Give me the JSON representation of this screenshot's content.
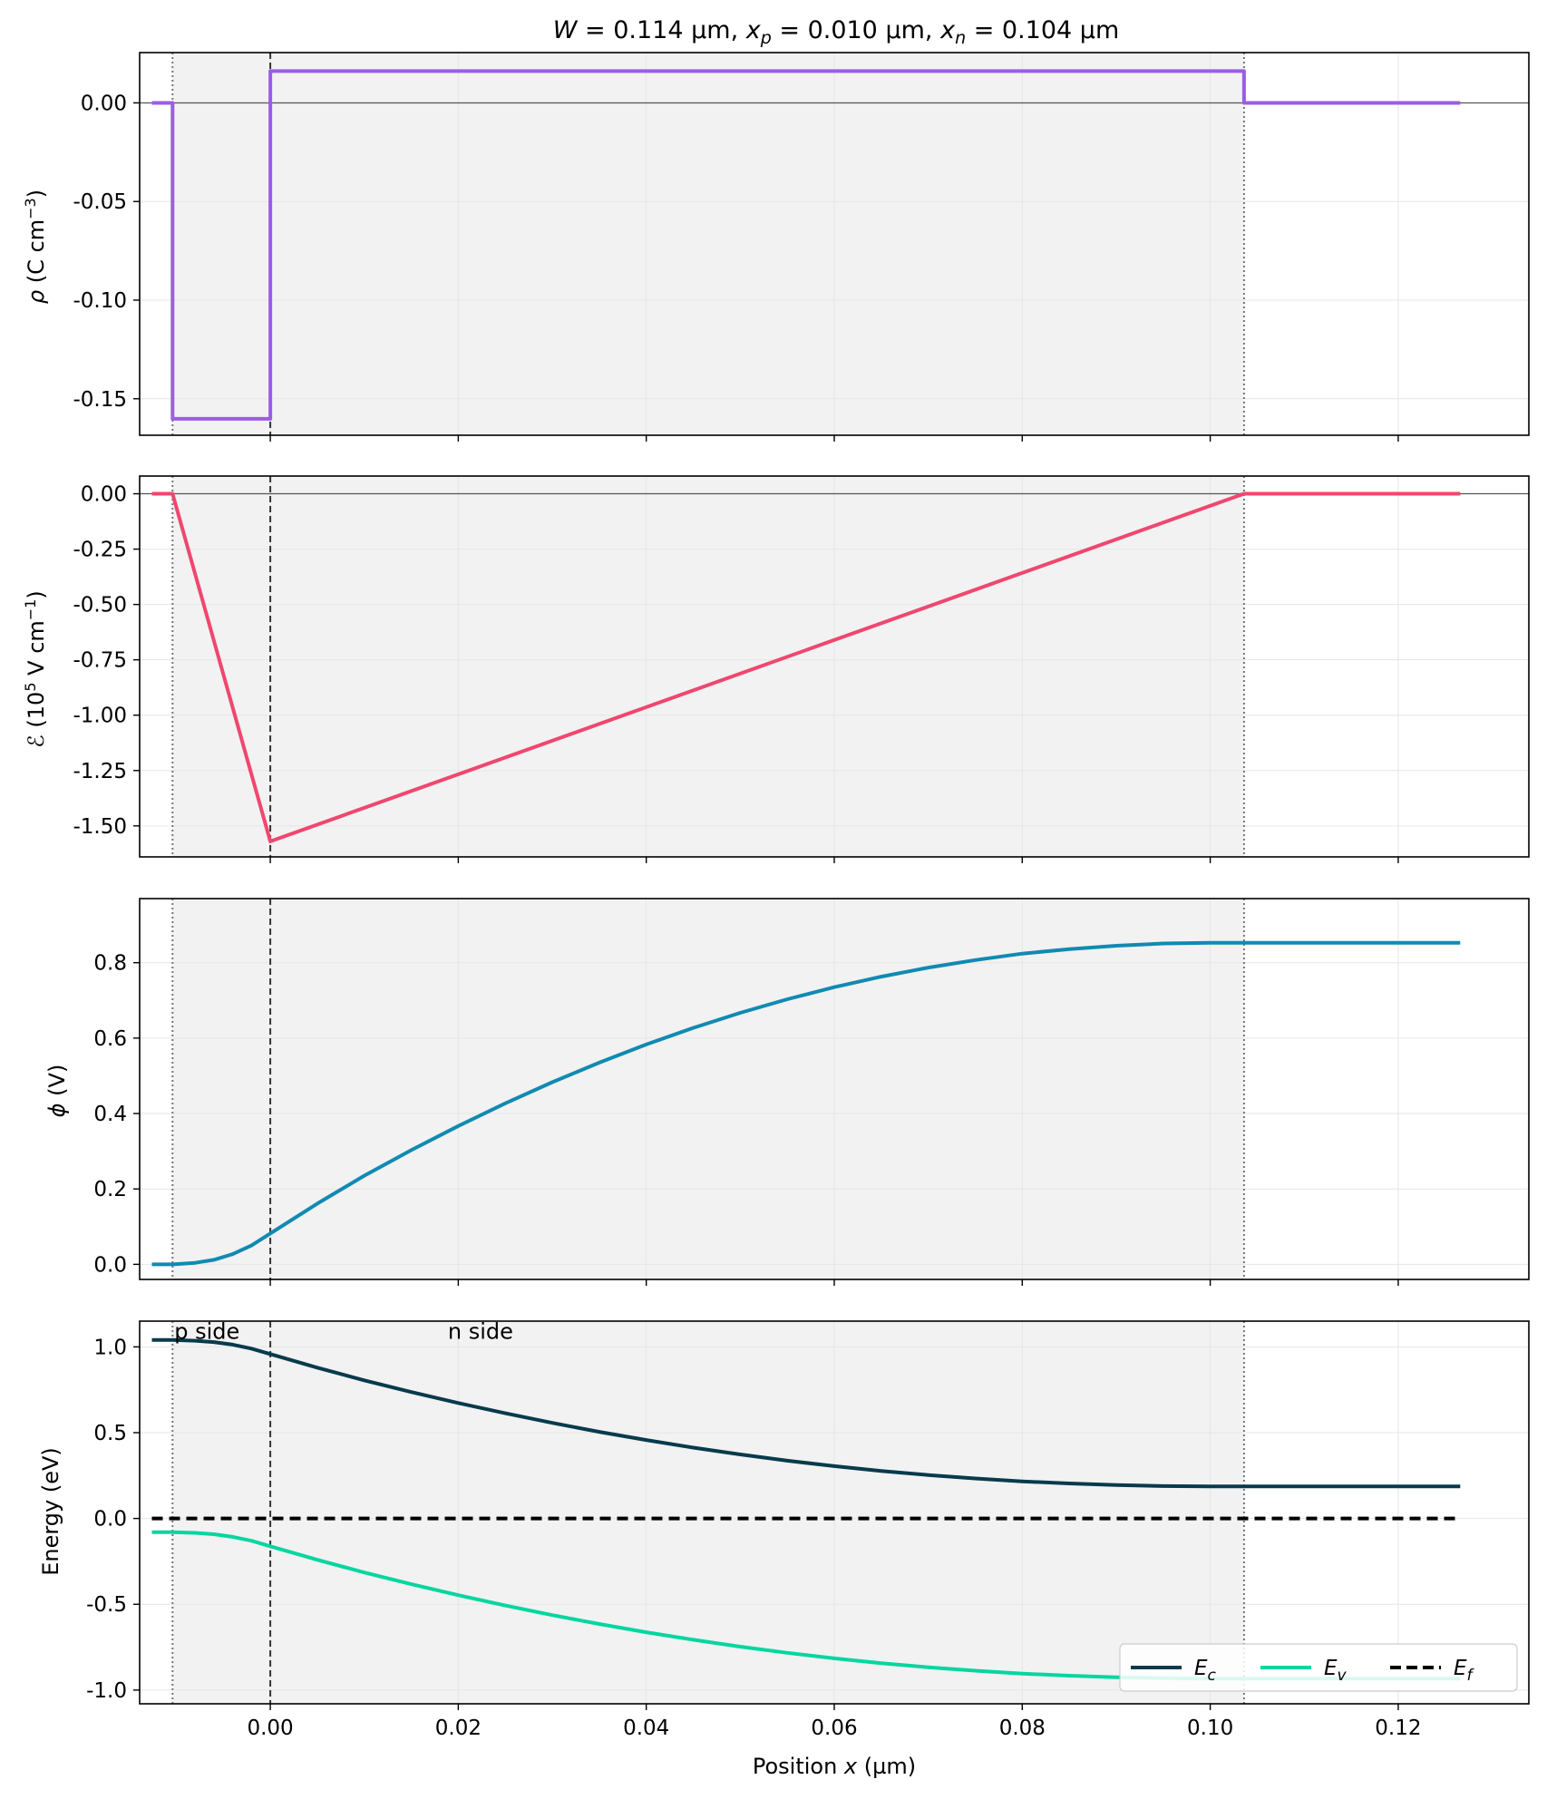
{
  "chart_data": {
    "type": "line",
    "title": "W = 0.114 µm, x_p = 0.010 µm, x_n = 0.104 µm",
    "title_parts": {
      "w": "W",
      "w_value": " = 0.114 µm,  ",
      "xp": "x",
      "xp_sub": "p",
      "xp_value": " = 0.010 µm,  ",
      "xn": "x",
      "xn_sub": "n",
      "xn_value": " = 0.104 µm"
    },
    "xlabel": "Position x (µm)",
    "xlabel_parts": {
      "pre": "Position ",
      "var": "x",
      "post": " (µm)"
    },
    "xlim": [
      -0.0139,
      0.1339
    ],
    "xticks": [
      0.0,
      0.02,
      0.04,
      0.06,
      0.08,
      0.1,
      0.12
    ],
    "xtick_labels": [
      "0.00",
      "0.02",
      "0.04",
      "0.06",
      "0.08",
      "0.10",
      "0.12"
    ],
    "x_p": 0.01,
    "x_n": 0.104,
    "x_start": -0.0126,
    "x_end": 0.1266,
    "shaded_region": [
      -0.0104,
      0.1036
    ],
    "panels": [
      {
        "id": "rho",
        "ylabel": "ρ (C cm⁻³)",
        "ylim": [
          -0.1685,
          0.0255
        ],
        "yticks": [
          0.0,
          -0.05,
          -0.1,
          -0.15
        ],
        "ytick_labels": [
          "0.00",
          "-0.05",
          "-0.10",
          "-0.15"
        ],
        "zero_line": true,
        "series": [
          {
            "color": "#9b5de5",
            "x": [
              -0.0126,
              -0.0104,
              -0.0104,
              0.0,
              0.0,
              0.1036,
              0.1036,
              0.1266
            ],
            "y": [
              0.0,
              0.0,
              -0.1602,
              -0.1602,
              0.0161,
              0.0161,
              0.0,
              0.0
            ]
          }
        ]
      },
      {
        "id": "efield",
        "ylabel": "ℰ (10⁵ V cm⁻¹)",
        "ylim": [
          -1.64,
          0.08
        ],
        "yticks": [
          0.0,
          -0.25,
          -0.5,
          -0.75,
          -1.0,
          -1.25,
          -1.5
        ],
        "ytick_labels": [
          "0.00",
          "-0.25",
          "-0.50",
          "-0.75",
          "-1.00",
          "-1.25",
          "-1.50"
        ],
        "zero_line": true,
        "series": [
          {
            "color": "#ef476f",
            "x": [
              -0.0126,
              -0.0104,
              0.0,
              0.1036,
              0.1266
            ],
            "y": [
              0.0,
              0.0,
              -1.57,
              0.0,
              0.0
            ]
          }
        ]
      },
      {
        "id": "phi",
        "ylabel": "ϕ (V)",
        "ylim": [
          -0.04,
          0.97
        ],
        "yticks": [
          0.0,
          0.2,
          0.4,
          0.6,
          0.8
        ],
        "ytick_labels": [
          "0.0",
          "0.2",
          "0.4",
          "0.6",
          "0.8"
        ],
        "zero_line": false,
        "series": [
          {
            "color": "#118ab2",
            "x": [
              -0.0126,
              -0.0104,
              -0.008,
              -0.006,
              -0.004,
              -0.002,
              0.0,
              0.005,
              0.01,
              0.015,
              0.02,
              0.025,
              0.03,
              0.035,
              0.04,
              0.045,
              0.05,
              0.055,
              0.06,
              0.065,
              0.07,
              0.075,
              0.08,
              0.085,
              0.09,
              0.095,
              0.1,
              0.1036,
              0.1266
            ],
            "y": [
              0.0,
              0.0,
              0.004,
              0.012,
              0.027,
              0.05,
              0.082,
              0.161,
              0.235,
              0.303,
              0.367,
              0.427,
              0.483,
              0.535,
              0.583,
              0.627,
              0.667,
              0.703,
              0.735,
              0.763,
              0.787,
              0.807,
              0.824,
              0.836,
              0.845,
              0.851,
              0.853,
              0.853,
              0.853
            ]
          }
        ]
      },
      {
        "id": "energy",
        "ylabel": "Energy (eV)",
        "ylim": [
          -1.08,
          1.15
        ],
        "yticks": [
          1.0,
          0.5,
          0.0,
          -0.5,
          -1.0
        ],
        "ytick_labels": [
          "1.0",
          "0.5",
          "0.0",
          "-0.5",
          "-1.0"
        ],
        "zero_line": false,
        "annotations": [
          {
            "text": "p side",
            "x": -0.0104,
            "y": 1.09
          },
          {
            "text": "n side",
            "x": 0.0187,
            "y": 1.09
          }
        ],
        "legend": {
          "position": "lower right",
          "entries": [
            {
              "label": "E",
              "sub": "c",
              "color": "#073b4c",
              "dash": false
            },
            {
              "label": "E",
              "sub": "v",
              "color": "#06d6a0",
              "dash": false
            },
            {
              "label": "E",
              "sub": "f",
              "color": "#000000",
              "dash": true
            }
          ]
        },
        "series": [
          {
            "name": "E_c",
            "color": "#073b4c",
            "x": [
              -0.0126,
              -0.0104,
              -0.008,
              -0.006,
              -0.004,
              -0.002,
              0.0,
              0.005,
              0.01,
              0.015,
              0.02,
              0.025,
              0.03,
              0.035,
              0.04,
              0.045,
              0.05,
              0.055,
              0.06,
              0.065,
              0.07,
              0.075,
              0.08,
              0.085,
              0.09,
              0.095,
              0.1,
              0.1036,
              0.1266
            ],
            "y": [
              1.04,
              1.04,
              1.036,
              1.028,
              1.013,
              0.99,
              0.958,
              0.879,
              0.805,
              0.737,
              0.673,
              0.613,
              0.557,
              0.505,
              0.457,
              0.413,
              0.373,
              0.337,
              0.305,
              0.277,
              0.253,
              0.233,
              0.216,
              0.204,
              0.195,
              0.189,
              0.187,
              0.187,
              0.187
            ]
          },
          {
            "name": "E_v",
            "color": "#06d6a0",
            "x": [
              -0.0126,
              -0.0104,
              -0.008,
              -0.006,
              -0.004,
              -0.002,
              0.0,
              0.005,
              0.01,
              0.015,
              0.02,
              0.025,
              0.03,
              0.035,
              0.04,
              0.045,
              0.05,
              0.055,
              0.06,
              0.065,
              0.07,
              0.075,
              0.08,
              0.085,
              0.09,
              0.095,
              0.1,
              0.1036,
              0.1266
            ],
            "y": [
              -0.08,
              -0.08,
              -0.084,
              -0.092,
              -0.107,
              -0.13,
              -0.162,
              -0.241,
              -0.315,
              -0.383,
              -0.447,
              -0.507,
              -0.563,
              -0.615,
              -0.663,
              -0.707,
              -0.747,
              -0.783,
              -0.815,
              -0.843,
              -0.867,
              -0.887,
              -0.904,
              -0.916,
              -0.925,
              -0.931,
              -0.933,
              -0.933,
              -0.933
            ]
          },
          {
            "name": "E_f",
            "color": "#000000",
            "dash": true,
            "x": [
              -0.0126,
              0.1266
            ],
            "y": [
              0.0,
              0.0
            ]
          }
        ]
      }
    ]
  }
}
